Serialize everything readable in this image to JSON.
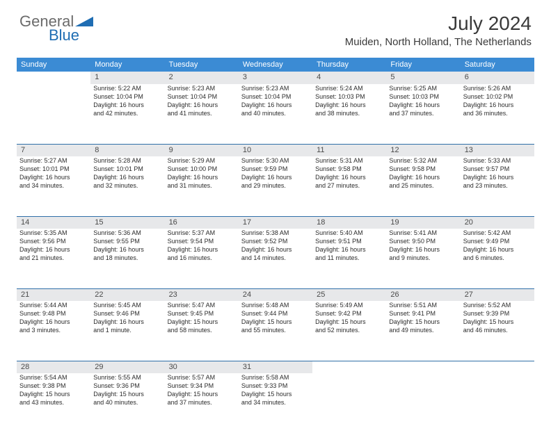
{
  "logo": {
    "text_general": "General",
    "text_blue": "Blue",
    "general_color": "#6b6b6b",
    "blue_color": "#1f6db3",
    "triangle_color": "#1f6db3"
  },
  "title": "July 2024",
  "location": "Muiden, North Holland, The Netherlands",
  "header_bg": "#3b8bd4",
  "border_color": "#2f6fa8",
  "daynum_bg": "#e7e8ea",
  "weekdays": [
    "Sunday",
    "Monday",
    "Tuesday",
    "Wednesday",
    "Thursday",
    "Friday",
    "Saturday"
  ],
  "weeks": [
    {
      "nums": [
        "",
        "1",
        "2",
        "3",
        "4",
        "5",
        "6"
      ],
      "cells": [
        null,
        {
          "sunrise": "Sunrise: 5:22 AM",
          "sunset": "Sunset: 10:04 PM",
          "day1": "Daylight: 16 hours",
          "day2": "and 42 minutes."
        },
        {
          "sunrise": "Sunrise: 5:23 AM",
          "sunset": "Sunset: 10:04 PM",
          "day1": "Daylight: 16 hours",
          "day2": "and 41 minutes."
        },
        {
          "sunrise": "Sunrise: 5:23 AM",
          "sunset": "Sunset: 10:04 PM",
          "day1": "Daylight: 16 hours",
          "day2": "and 40 minutes."
        },
        {
          "sunrise": "Sunrise: 5:24 AM",
          "sunset": "Sunset: 10:03 PM",
          "day1": "Daylight: 16 hours",
          "day2": "and 38 minutes."
        },
        {
          "sunrise": "Sunrise: 5:25 AM",
          "sunset": "Sunset: 10:03 PM",
          "day1": "Daylight: 16 hours",
          "day2": "and 37 minutes."
        },
        {
          "sunrise": "Sunrise: 5:26 AM",
          "sunset": "Sunset: 10:02 PM",
          "day1": "Daylight: 16 hours",
          "day2": "and 36 minutes."
        }
      ]
    },
    {
      "nums": [
        "7",
        "8",
        "9",
        "10",
        "11",
        "12",
        "13"
      ],
      "cells": [
        {
          "sunrise": "Sunrise: 5:27 AM",
          "sunset": "Sunset: 10:01 PM",
          "day1": "Daylight: 16 hours",
          "day2": "and 34 minutes."
        },
        {
          "sunrise": "Sunrise: 5:28 AM",
          "sunset": "Sunset: 10:01 PM",
          "day1": "Daylight: 16 hours",
          "day2": "and 32 minutes."
        },
        {
          "sunrise": "Sunrise: 5:29 AM",
          "sunset": "Sunset: 10:00 PM",
          "day1": "Daylight: 16 hours",
          "day2": "and 31 minutes."
        },
        {
          "sunrise": "Sunrise: 5:30 AM",
          "sunset": "Sunset: 9:59 PM",
          "day1": "Daylight: 16 hours",
          "day2": "and 29 minutes."
        },
        {
          "sunrise": "Sunrise: 5:31 AM",
          "sunset": "Sunset: 9:58 PM",
          "day1": "Daylight: 16 hours",
          "day2": "and 27 minutes."
        },
        {
          "sunrise": "Sunrise: 5:32 AM",
          "sunset": "Sunset: 9:58 PM",
          "day1": "Daylight: 16 hours",
          "day2": "and 25 minutes."
        },
        {
          "sunrise": "Sunrise: 5:33 AM",
          "sunset": "Sunset: 9:57 PM",
          "day1": "Daylight: 16 hours",
          "day2": "and 23 minutes."
        }
      ]
    },
    {
      "nums": [
        "14",
        "15",
        "16",
        "17",
        "18",
        "19",
        "20"
      ],
      "cells": [
        {
          "sunrise": "Sunrise: 5:35 AM",
          "sunset": "Sunset: 9:56 PM",
          "day1": "Daylight: 16 hours",
          "day2": "and 21 minutes."
        },
        {
          "sunrise": "Sunrise: 5:36 AM",
          "sunset": "Sunset: 9:55 PM",
          "day1": "Daylight: 16 hours",
          "day2": "and 18 minutes."
        },
        {
          "sunrise": "Sunrise: 5:37 AM",
          "sunset": "Sunset: 9:54 PM",
          "day1": "Daylight: 16 hours",
          "day2": "and 16 minutes."
        },
        {
          "sunrise": "Sunrise: 5:38 AM",
          "sunset": "Sunset: 9:52 PM",
          "day1": "Daylight: 16 hours",
          "day2": "and 14 minutes."
        },
        {
          "sunrise": "Sunrise: 5:40 AM",
          "sunset": "Sunset: 9:51 PM",
          "day1": "Daylight: 16 hours",
          "day2": "and 11 minutes."
        },
        {
          "sunrise": "Sunrise: 5:41 AM",
          "sunset": "Sunset: 9:50 PM",
          "day1": "Daylight: 16 hours",
          "day2": "and 9 minutes."
        },
        {
          "sunrise": "Sunrise: 5:42 AM",
          "sunset": "Sunset: 9:49 PM",
          "day1": "Daylight: 16 hours",
          "day2": "and 6 minutes."
        }
      ]
    },
    {
      "nums": [
        "21",
        "22",
        "23",
        "24",
        "25",
        "26",
        "27"
      ],
      "cells": [
        {
          "sunrise": "Sunrise: 5:44 AM",
          "sunset": "Sunset: 9:48 PM",
          "day1": "Daylight: 16 hours",
          "day2": "and 3 minutes."
        },
        {
          "sunrise": "Sunrise: 5:45 AM",
          "sunset": "Sunset: 9:46 PM",
          "day1": "Daylight: 16 hours",
          "day2": "and 1 minute."
        },
        {
          "sunrise": "Sunrise: 5:47 AM",
          "sunset": "Sunset: 9:45 PM",
          "day1": "Daylight: 15 hours",
          "day2": "and 58 minutes."
        },
        {
          "sunrise": "Sunrise: 5:48 AM",
          "sunset": "Sunset: 9:44 PM",
          "day1": "Daylight: 15 hours",
          "day2": "and 55 minutes."
        },
        {
          "sunrise": "Sunrise: 5:49 AM",
          "sunset": "Sunset: 9:42 PM",
          "day1": "Daylight: 15 hours",
          "day2": "and 52 minutes."
        },
        {
          "sunrise": "Sunrise: 5:51 AM",
          "sunset": "Sunset: 9:41 PM",
          "day1": "Daylight: 15 hours",
          "day2": "and 49 minutes."
        },
        {
          "sunrise": "Sunrise: 5:52 AM",
          "sunset": "Sunset: 9:39 PM",
          "day1": "Daylight: 15 hours",
          "day2": "and 46 minutes."
        }
      ]
    },
    {
      "nums": [
        "28",
        "29",
        "30",
        "31",
        "",
        "",
        ""
      ],
      "cells": [
        {
          "sunrise": "Sunrise: 5:54 AM",
          "sunset": "Sunset: 9:38 PM",
          "day1": "Daylight: 15 hours",
          "day2": "and 43 minutes."
        },
        {
          "sunrise": "Sunrise: 5:55 AM",
          "sunset": "Sunset: 9:36 PM",
          "day1": "Daylight: 15 hours",
          "day2": "and 40 minutes."
        },
        {
          "sunrise": "Sunrise: 5:57 AM",
          "sunset": "Sunset: 9:34 PM",
          "day1": "Daylight: 15 hours",
          "day2": "and 37 minutes."
        },
        {
          "sunrise": "Sunrise: 5:58 AM",
          "sunset": "Sunset: 9:33 PM",
          "day1": "Daylight: 15 hours",
          "day2": "and 34 minutes."
        },
        null,
        null,
        null
      ]
    }
  ]
}
